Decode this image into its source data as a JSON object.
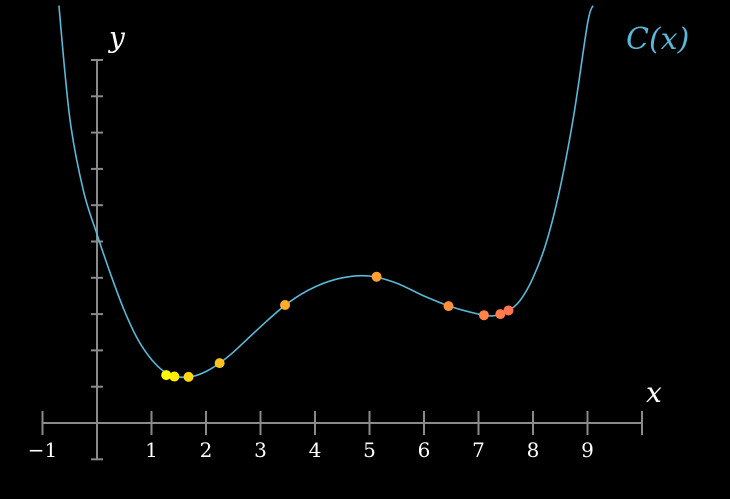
{
  "chart_data": {
    "type": "line",
    "title": "",
    "xlabel": "x",
    "ylabel": "y",
    "xlim": [
      -1,
      10
    ],
    "ylim": [
      -1,
      10
    ],
    "x_ticks": [
      -1,
      1,
      2,
      3,
      4,
      5,
      6,
      7,
      8,
      9
    ],
    "x_tick_labels": [
      "−1",
      "1",
      "2",
      "3",
      "4",
      "5",
      "6",
      "7",
      "8",
      "9"
    ],
    "y_ticks": [
      -1,
      1,
      2,
      3,
      4,
      5,
      6,
      7,
      8,
      9,
      10
    ],
    "grid": false,
    "curve": {
      "label": "C(x)",
      "color": "#5ab8d9",
      "points": [
        [
          -0.7,
          11.5
        ],
        [
          -0.5,
          8.4
        ],
        [
          -0.25,
          6.4
        ],
        [
          0,
          5.2
        ],
        [
          0.25,
          4.1
        ],
        [
          0.5,
          3.1
        ],
        [
          0.75,
          2.3
        ],
        [
          1.0,
          1.75
        ],
        [
          1.25,
          1.4
        ],
        [
          1.5,
          1.27
        ],
        [
          1.75,
          1.28
        ],
        [
          2.0,
          1.42
        ],
        [
          2.25,
          1.65
        ],
        [
          2.5,
          1.95
        ],
        [
          3.0,
          2.65
        ],
        [
          3.5,
          3.3
        ],
        [
          4.0,
          3.75
        ],
        [
          4.5,
          4.0
        ],
        [
          5.0,
          4.05
        ],
        [
          5.5,
          3.85
        ],
        [
          6.0,
          3.5
        ],
        [
          6.5,
          3.2
        ],
        [
          7.0,
          3.0
        ],
        [
          7.25,
          2.95
        ],
        [
          7.5,
          3.05
        ],
        [
          7.75,
          3.35
        ],
        [
          8.0,
          4.0
        ],
        [
          8.25,
          5.0
        ],
        [
          8.5,
          6.5
        ],
        [
          8.75,
          8.5
        ],
        [
          9.0,
          11.0
        ],
        [
          9.1,
          11.5
        ]
      ]
    },
    "points": [
      {
        "x": 1.27,
        "y": 1.32,
        "color": "#ffff00"
      },
      {
        "x": 1.42,
        "y": 1.28,
        "color": "#ffee00"
      },
      {
        "x": 1.68,
        "y": 1.27,
        "color": "#ffd814"
      },
      {
        "x": 2.25,
        "y": 1.65,
        "color": "#ffc21e"
      },
      {
        "x": 3.45,
        "y": 3.25,
        "color": "#ffac28"
      },
      {
        "x": 5.13,
        "y": 4.03,
        "color": "#ff9f32"
      },
      {
        "x": 6.45,
        "y": 3.22,
        "color": "#ff913c"
      },
      {
        "x": 7.1,
        "y": 2.97,
        "color": "#ff8446"
      },
      {
        "x": 7.4,
        "y": 3.0,
        "color": "#ff7d4b"
      },
      {
        "x": 7.55,
        "y": 3.1,
        "color": "#ff7550"
      }
    ]
  }
}
